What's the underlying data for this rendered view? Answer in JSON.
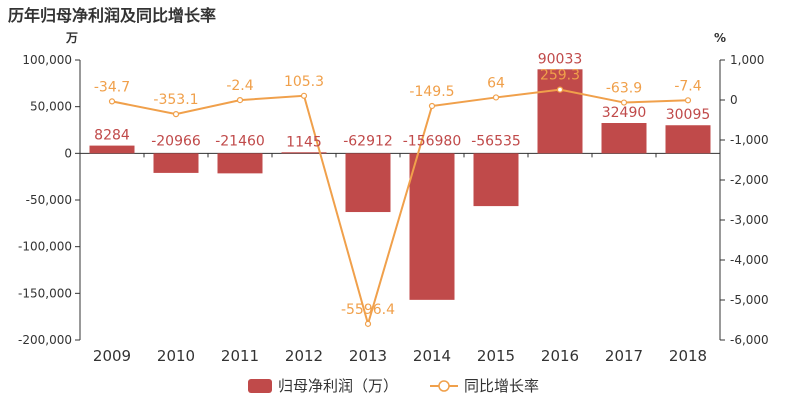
{
  "chart_data": {
    "type": "bar",
    "title": "历年归母净利润及同比增长率",
    "categories": [
      "2009",
      "2010",
      "2011",
      "2012",
      "2013",
      "2014",
      "2015",
      "2016",
      "2017",
      "2018"
    ],
    "series": [
      {
        "name": "归母净利润（万）",
        "type": "bar",
        "color": "#c04a4a",
        "values": [
          8284,
          -20966,
          -21460,
          1145,
          -62912,
          -156980,
          -56535,
          90033,
          32490,
          30095
        ],
        "labels": [
          "8284",
          "-20966",
          "-21460",
          "1145",
          "-62912",
          "-156980",
          "-56535",
          "90033",
          "32490",
          "30095"
        ]
      },
      {
        "name": "同比增长率",
        "type": "line",
        "color": "#f0a04b",
        "axis": "right",
        "values": [
          -34.7,
          -353.1,
          -2.4,
          105.3,
          -5596.4,
          -149.5,
          64,
          259.3,
          -63.9,
          -7.4
        ],
        "labels": [
          "-34.7",
          "-353.1",
          "-2.4",
          "105.3",
          "-5596.4",
          "-149.5",
          "64",
          "259.3",
          "-63.9",
          "-7.4"
        ]
      }
    ],
    "left_axis": {
      "unit": "万",
      "ylim": [
        -200000,
        100000
      ],
      "ticks": [
        "100,000",
        "50,000",
        "0",
        "-50,000",
        "-100,000",
        "-150,000",
        "-200,000"
      ]
    },
    "right_axis": {
      "unit": "%",
      "ylim": [
        -6000,
        1000
      ],
      "ticks": [
        "1,000",
        "0",
        "-1,000",
        "-2,000",
        "-3,000",
        "-4,000",
        "-5,000",
        "-6,000"
      ]
    },
    "legend_position": "bottom",
    "grid": false
  }
}
